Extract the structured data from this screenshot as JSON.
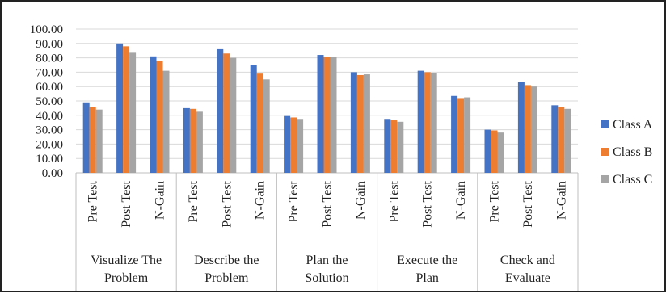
{
  "chart_data": {
    "type": "bar",
    "groups": [
      {
        "label_lines": [
          "Visualize The",
          "Problem"
        ]
      },
      {
        "label_lines": [
          "Describe the",
          "Problem"
        ]
      },
      {
        "label_lines": [
          "Plan the",
          "Solution"
        ]
      },
      {
        "label_lines": [
          "Execute the",
          "Plan"
        ]
      },
      {
        "label_lines": [
          "Check and",
          "Evaluate"
        ]
      }
    ],
    "subcategories": [
      "Pre Test",
      "Post Test",
      "N-Gain"
    ],
    "series": [
      {
        "name": "Class A",
        "color": "#4472C4",
        "values": [
          49,
          90,
          81,
          45,
          86,
          75,
          39.5,
          82,
          70,
          37.5,
          71,
          53.5,
          30,
          63,
          47
        ]
      },
      {
        "name": "Class B",
        "color": "#ED7D31",
        "values": [
          45.5,
          88,
          78,
          44.5,
          83,
          69,
          38.5,
          80.5,
          68,
          36.5,
          70,
          52,
          29.5,
          61,
          45.5
        ]
      },
      {
        "name": "Class C",
        "color": "#A5A5A5",
        "values": [
          44,
          83.5,
          71,
          42.5,
          80,
          65,
          37.5,
          80.5,
          68.5,
          35.5,
          69.5,
          52.5,
          28,
          60,
          44.5
        ]
      }
    ],
    "ylim": [
      0,
      100
    ],
    "y_ticks": [
      "0.00",
      "10.00",
      "20.00",
      "30.00",
      "40.00",
      "50.00",
      "60.00",
      "70.00",
      "80.00",
      "90.00",
      "100.00"
    ],
    "grid": true,
    "legend_position": "right"
  }
}
